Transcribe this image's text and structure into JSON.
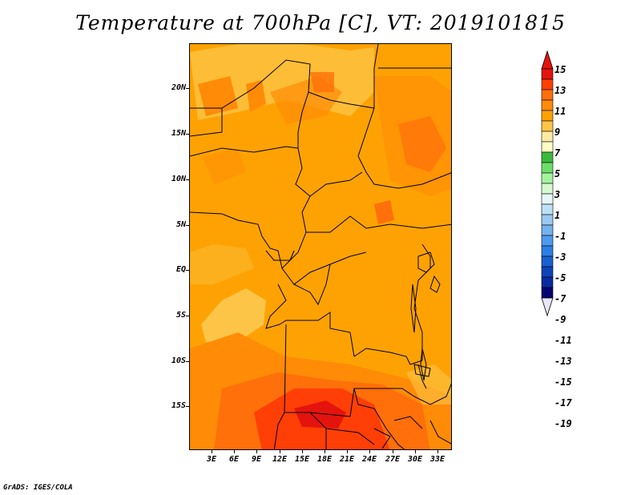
{
  "title": "Temperature at 700hPa [C], VT: 2019101815",
  "credit": "GrADS: IGES/COLA",
  "map": {
    "lat_labels": [
      "20N",
      "15N",
      "10N",
      "5N",
      "EQ",
      "5S",
      "10S",
      "15S"
    ],
    "lon_labels": [
      "3E",
      "6E",
      "9E",
      "12E",
      "15E",
      "18E",
      "21E",
      "24E",
      "27E",
      "30E",
      "33E"
    ]
  },
  "colorbar": {
    "labels": [
      "15",
      "13",
      "11",
      "9",
      "7",
      "5",
      "3",
      "1",
      "-1",
      "-3",
      "-5",
      "-7",
      "-9",
      "-11",
      "-13",
      "-15",
      "-17",
      "-19"
    ],
    "colors": [
      "#e5130d",
      "#ff3f05",
      "#ff6f0a",
      "#ff8b07",
      "#fea203",
      "#fdc548",
      "#feeaa2",
      "#ffffc6",
      "#3cb93c",
      "#6ddd6a",
      "#a3f59d",
      "#d6f9d0",
      "#e6f7f7",
      "#bee0f4",
      "#9ac9f1",
      "#76b2ee",
      "#4e9aee",
      "#2d7fe5",
      "#1960d0",
      "#0f43b9",
      "#0a2ba1",
      "#050571",
      "#e6e6f7"
    ],
    "top_arrow_color": "#e5130d",
    "bottom_arrow_color": "#e6e6f7"
  },
  "field_colors": {
    "base": "#fea203",
    "warm": "#ff8b07",
    "warmer": "#ff6f0a",
    "hot": "#ff3f05",
    "hottest": "#e5130d",
    "cool": "#fdc548"
  }
}
